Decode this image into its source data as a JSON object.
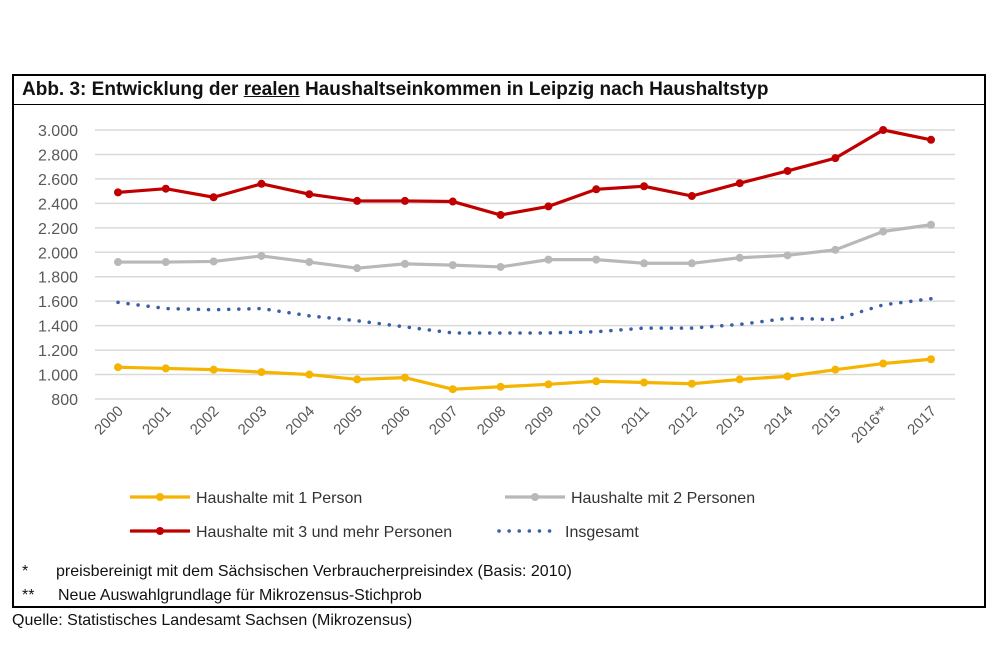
{
  "chart_data": {
    "type": "line",
    "title_prefix": "Abb. 3: Entwicklung der ",
    "title_underlined": "realen",
    "title_suffix": " Haushaltseinkommen in Leipzig nach Haushaltstyp",
    "categories": [
      "2000",
      "2001",
      "2002",
      "2003",
      "2004",
      "2005",
      "2006",
      "2007",
      "2008",
      "2009",
      "2010",
      "2011",
      "2012",
      "2013",
      "2014",
      "2015",
      "2016**",
      "2017"
    ],
    "ylim": [
      800,
      3000
    ],
    "yticks": [
      800,
      1000,
      1200,
      1400,
      1600,
      1800,
      2000,
      2200,
      2400,
      2600,
      2800,
      3000
    ],
    "ytick_labels": [
      "800",
      "1.000",
      "1.200",
      "1.400",
      "1.600",
      "1.800",
      "2.000",
      "2.200",
      "2.400",
      "2.600",
      "2.800",
      "3.000"
    ],
    "grid": true,
    "legend_placement": "bottom",
    "series": [
      {
        "name": "Haushalte mit 1 Person",
        "color": "#f5b400",
        "style": "solid-markers",
        "values": [
          1060,
          1050,
          1040,
          1020,
          1000,
          960,
          975,
          880,
          900,
          920,
          945,
          935,
          925,
          960,
          985,
          1040,
          1090,
          1125
        ]
      },
      {
        "name": "Haushalte mit 2 Personen",
        "color": "#b8b8b8",
        "style": "solid-markers",
        "values": [
          1920,
          1920,
          1925,
          1970,
          1920,
          1870,
          1905,
          1895,
          1880,
          1940,
          1940,
          1910,
          1910,
          1955,
          1975,
          2020,
          2170,
          2225
        ]
      },
      {
        "name": "Haushalte mit 3 und mehr Personen",
        "color": "#c00000",
        "style": "solid-markers",
        "values": [
          2490,
          2520,
          2450,
          2560,
          2475,
          2420,
          2420,
          2415,
          2305,
          2375,
          2515,
          2540,
          2460,
          2565,
          2665,
          2770,
          3000,
          2920
        ]
      },
      {
        "name": "Insgesamt",
        "color": "#3a5fa8",
        "style": "dotted",
        "values": [
          1590,
          1540,
          1530,
          1540,
          1480,
          1440,
          1390,
          1340,
          1340,
          1340,
          1350,
          1380,
          1380,
          1410,
          1460,
          1450,
          1570,
          1620
        ]
      }
    ]
  },
  "footnotes": [
    {
      "mark": "*",
      "text": "preisbereinigt mit dem Sächsischen Verbraucherpreisindex (Basis: 2010)"
    },
    {
      "mark": "**",
      "text": "Neue Auswahlgrundlage für Mikrozensus-Stichprob"
    }
  ],
  "source": "Quelle: Statistisches Landesamt Sachsen (Mikrozensus)"
}
